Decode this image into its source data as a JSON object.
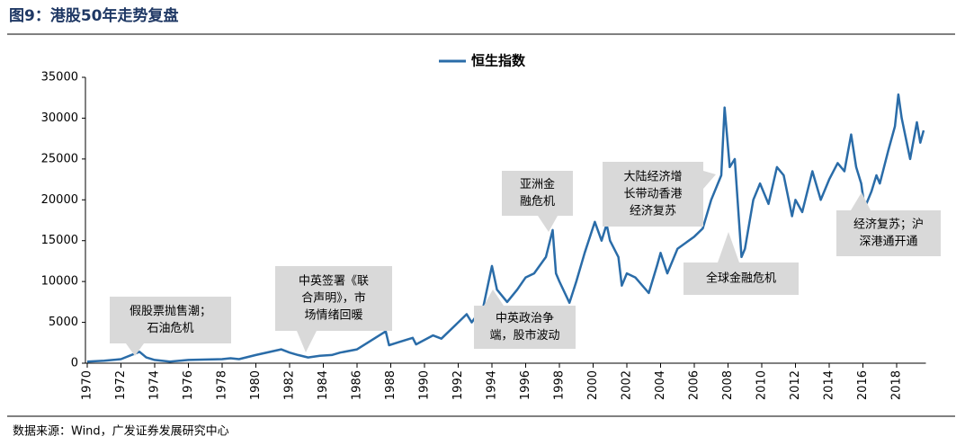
{
  "chart_data": {
    "type": "line",
    "title": "图9：港股50年走势复盘",
    "source": "数据来源：Wind，广发证券发展研究中心",
    "x": [
      1970,
      1971,
      1972,
      1973.1,
      1973.5,
      1974,
      1974.9,
      1976,
      1978,
      1978.5,
      1979,
      1980,
      1981.5,
      1982,
      1982.5,
      1983.1,
      1983.8,
      1984.5,
      1985,
      1986,
      1987.7,
      1987.9,
      1988.5,
      1989.3,
      1989.5,
      1990.5,
      1991,
      1992,
      1992.5,
      1992.8,
      1993.5,
      1994.0,
      1994.3,
      1994.9,
      1995.5,
      1996,
      1996.5,
      1997.2,
      1997.6,
      1997.8,
      1998.0,
      1998.6,
      1999.0,
      1999.5,
      2000.1,
      2000.5,
      2000.8,
      2001.0,
      2001.5,
      2001.7,
      2002.0,
      2002.5,
      2003.3,
      2003.8,
      2004.0,
      2004.4,
      2005,
      2006,
      2006.5,
      2007,
      2007.6,
      2007.8,
      2008.1,
      2008.4,
      2008.8,
      2009.0,
      2009.5,
      2009.9,
      2010.4,
      2010.9,
      2011.3,
      2011.8,
      2012.0,
      2012.4,
      2013.0,
      2013.5,
      2014.0,
      2014.5,
      2014.9,
      2015.3,
      2015.6,
      2015.9,
      2016.1,
      2016.5,
      2016.8,
      2017.0,
      2017.5,
      2017.9,
      2018.1,
      2018.3,
      2018.8,
      2019.2,
      2019.4,
      2019.6
    ],
    "series": [
      {
        "name": "恒生指数",
        "color": "#2a6ca8",
        "values": [
          200,
          300,
          500,
          1400,
          700,
          400,
          200,
          400,
          500,
          600,
          500,
          1000,
          1700,
          1300,
          1000,
          700,
          900,
          1000,
          1300,
          1700,
          3900,
          2200,
          2600,
          3100,
          2300,
          3400,
          3000,
          5000,
          6000,
          5000,
          7000,
          11900,
          9000,
          7500,
          9000,
          10500,
          11000,
          13000,
          16300,
          11000,
          10000,
          7400,
          10000,
          13500,
          17300,
          15000,
          17000,
          15000,
          13000,
          9500,
          11000,
          10500,
          8600,
          12000,
          13500,
          11000,
          14000,
          15500,
          16500,
          20000,
          23000,
          31300,
          24000,
          25000,
          13000,
          14000,
          20000,
          22000,
          19500,
          24000,
          23000,
          18000,
          20000,
          18500,
          23500,
          20000,
          22500,
          24500,
          23500,
          28000,
          24000,
          22000,
          19000,
          21000,
          23000,
          22000,
          26000,
          29000,
          32900,
          30000,
          25000,
          29500,
          27000,
          28500
        ]
      }
    ],
    "xlim": [
      1970,
      2020
    ],
    "xticks": [
      1970,
      1972,
      1974,
      1976,
      1978,
      1980,
      1982,
      1984,
      1986,
      1988,
      1990,
      1992,
      1994,
      1996,
      1998,
      2000,
      2002,
      2004,
      2006,
      2008,
      2010,
      2012,
      2014,
      2016,
      2018
    ],
    "ylim": [
      0,
      35000
    ],
    "yticks": [
      0,
      5000,
      10000,
      15000,
      20000,
      25000,
      30000,
      35000
    ],
    "annotations": [
      {
        "lines": [
          "假股票抛售潮；",
          "石油危机"
        ]
      },
      {
        "lines": [
          "中英签署《联",
          "合声明》，市",
          "场情绪回暖"
        ]
      },
      {
        "lines": [
          "中英政治争",
          "端，股市波动"
        ]
      },
      {
        "lines": [
          "亚洲金",
          "融危机"
        ]
      },
      {
        "lines": [
          "大陆经济增",
          "长带动香港",
          "经济复苏"
        ]
      },
      {
        "lines": [
          "全球金融危机"
        ]
      },
      {
        "lines": [
          "经济复苏；沪",
          "深港通开通"
        ]
      }
    ]
  }
}
